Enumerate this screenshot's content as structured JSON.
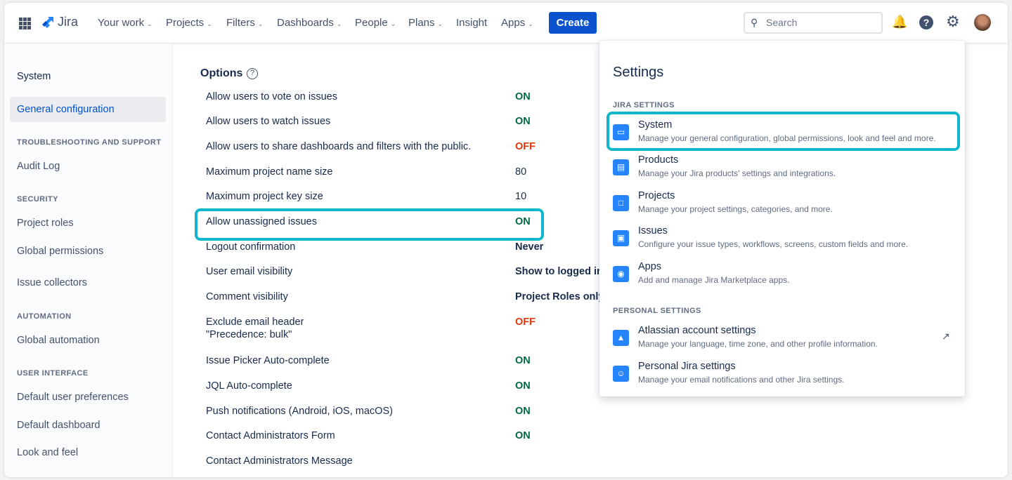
{
  "topbar": {
    "app_name": "Jira",
    "nav": [
      {
        "label": "Your work",
        "dropdown": true
      },
      {
        "label": "Projects",
        "dropdown": true
      },
      {
        "label": "Filters",
        "dropdown": true
      },
      {
        "label": "Dashboards",
        "dropdown": true
      },
      {
        "label": "People",
        "dropdown": true
      },
      {
        "label": "Plans",
        "dropdown": true
      },
      {
        "label": "Insight",
        "dropdown": false
      },
      {
        "label": "Apps",
        "dropdown": true
      }
    ],
    "create_label": "Create",
    "search_placeholder": "Search"
  },
  "sidebar": {
    "title": "System",
    "selected": "General configuration",
    "items": {
      "general": "General configuration",
      "h_troubleshooting": "TROUBLESHOOTING AND SUPPORT",
      "audit": "Audit Log",
      "h_security": "SECURITY",
      "roles": "Project roles",
      "global_perm": "Global permissions",
      "collectors": "Issue collectors",
      "h_automation": "AUTOMATION",
      "global_auto": "Global automation",
      "h_ui": "USER INTERFACE",
      "user_prefs": "Default user preferences",
      "dashboard": "Default dashboard",
      "look": "Look and feel"
    }
  },
  "options": {
    "title": "Options",
    "rows": [
      {
        "label": "Allow users to vote on issues",
        "value": "ON"
      },
      {
        "label": "Allow users to watch issues",
        "value": "ON"
      },
      {
        "label": "Allow users to share dashboards and filters with the public.",
        "value": "OFF"
      },
      {
        "label": "Maximum project name size",
        "value": "80"
      },
      {
        "label": "Maximum project key size",
        "value": "10"
      },
      {
        "label": "Allow unassigned issues",
        "value": "ON"
      },
      {
        "label": "Logout confirmation",
        "value": "Never"
      },
      {
        "label": "User email visibility",
        "value": "Show to logged in"
      },
      {
        "label": "Comment visibility",
        "value": "Project Roles only"
      },
      {
        "label": "Exclude email header",
        "label2": "\"Precedence: bulk\"",
        "value": "OFF"
      },
      {
        "label": "Issue Picker Auto-complete",
        "value": "ON"
      },
      {
        "label": "JQL Auto-complete",
        "value": "ON"
      },
      {
        "label": "Push notifications (Android, iOS, macOS)",
        "value": "ON"
      },
      {
        "label": "Contact Administrators Form",
        "value": "ON"
      },
      {
        "label": "Contact Administrators Message",
        "value": ""
      }
    ]
  },
  "settings_panel": {
    "title": "Settings",
    "jira_heading": "JIRA SETTINGS",
    "personal_heading": "PERSONAL SETTINGS",
    "items": [
      {
        "name": "System",
        "desc": "Manage your general configuration, global permissions, look and feel and more.",
        "icon": "monitor-icon"
      },
      {
        "name": "Products",
        "desc": "Manage your Jira products' settings and integrations.",
        "icon": "window-icon"
      },
      {
        "name": "Projects",
        "desc": "Manage your project settings, categories, and more.",
        "icon": "folder-icon"
      },
      {
        "name": "Issues",
        "desc": "Configure your issue types, workflows, screens, custom fields and more.",
        "icon": "issue-icon"
      },
      {
        "name": "Apps",
        "desc": "Add and manage Jira Marketplace apps.",
        "icon": "apps-icon"
      },
      {
        "name": "Atlassian account settings",
        "desc": "Manage your language, time zone, and other profile information.",
        "icon": "atlassian-icon"
      },
      {
        "name": "Personal Jira settings",
        "desc": "Manage your email notifications and other Jira settings.",
        "icon": "person-icon"
      }
    ]
  },
  "colors": {
    "accent": "#0c52cc",
    "on": "#006644",
    "off": "#de350b",
    "highlight": "#12b5cb"
  }
}
